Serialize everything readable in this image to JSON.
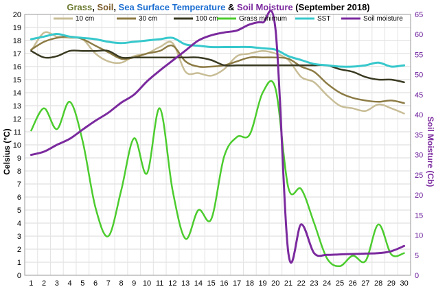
{
  "title": {
    "parts": [
      {
        "text": "Grass",
        "color": "#6b7a2f"
      },
      {
        "text": ", ",
        "color": "#000000"
      },
      {
        "text": "Soil",
        "color": "#7a5c2a"
      },
      {
        "text": ", ",
        "color": "#000000"
      },
      {
        "text": "Sea Surface Temperature",
        "color": "#1c6fd1"
      },
      {
        "text": " & ",
        "color": "#000000"
      },
      {
        "text": "Soil Moisture",
        "color": "#7b2a9e"
      },
      {
        "text": " (September 2018)",
        "color": "#000000"
      }
    ]
  },
  "chart_data": {
    "type": "line",
    "x": [
      1,
      2,
      3,
      4,
      5,
      6,
      7,
      8,
      9,
      10,
      11,
      12,
      13,
      14,
      15,
      16,
      17,
      18,
      19,
      20,
      21,
      22,
      23,
      24,
      25,
      26,
      27,
      28,
      29,
      30
    ],
    "xlabel": "",
    "ylabel": "Celsius (°C)",
    "ylabel_right": "Soil Moisture (Cb)",
    "ylim": [
      0,
      20
    ],
    "ylim_right": [
      0,
      65
    ],
    "grid": true,
    "legend_position": "top",
    "series": [
      {
        "name": "10 cm",
        "axis": "left",
        "color": "#c8bd96",
        "width": 2.5,
        "values": [
          17.2,
          18.6,
          18.3,
          18.2,
          18.1,
          17.0,
          16.4,
          16.3,
          16.8,
          17.0,
          17.5,
          17.8,
          15.6,
          15.5,
          15.3,
          15.8,
          16.8,
          17.0,
          17.2,
          17.0,
          16.5,
          15.2,
          14.8,
          13.8,
          13.0,
          12.8,
          12.6,
          13.1,
          12.8,
          12.4
        ]
      },
      {
        "name": "30 cm",
        "axis": "left",
        "color": "#8c7b45",
        "width": 2.5,
        "values": [
          17.3,
          17.9,
          18.2,
          18.3,
          18.1,
          17.6,
          17.1,
          16.6,
          16.7,
          17.0,
          17.2,
          17.6,
          16.4,
          16.0,
          16.0,
          16.1,
          16.4,
          16.7,
          16.7,
          16.7,
          16.6,
          16.0,
          15.6,
          14.7,
          14.0,
          13.6,
          13.4,
          13.3,
          13.4,
          13.2
        ]
      },
      {
        "name": "100 cm",
        "axis": "left",
        "color": "#3a3a22",
        "width": 2.5,
        "values": [
          17.2,
          16.7,
          16.8,
          17.2,
          17.2,
          17.2,
          17.2,
          16.7,
          16.7,
          16.7,
          16.7,
          16.7,
          16.7,
          16.7,
          16.5,
          16.1,
          16.1,
          16.1,
          16.1,
          16.1,
          16.1,
          16.1,
          16.1,
          16.1,
          15.8,
          15.6,
          15.2,
          15.0,
          15.0,
          14.8
        ]
      },
      {
        "name": "Grass minimum",
        "axis": "left",
        "color": "#4ccc2e",
        "width": 2.5,
        "values": [
          11.1,
          12.8,
          11.2,
          13.3,
          10.3,
          5.2,
          3.0,
          6.5,
          10.5,
          7.8,
          12.8,
          6.5,
          2.8,
          5.0,
          4.3,
          9.1,
          10.6,
          10.8,
          14.0,
          14.3,
          6.7,
          6.6,
          4.0,
          1.3,
          0.7,
          1.5,
          1.1,
          3.9,
          1.6,
          1.7
        ]
      },
      {
        "name": "SST",
        "axis": "left",
        "color": "#37c8cc",
        "width": 3,
        "values": [
          18.1,
          18.3,
          18.5,
          18.3,
          18.2,
          18.1,
          17.9,
          17.8,
          17.9,
          18.0,
          18.1,
          18.2,
          17.7,
          17.6,
          17.5,
          17.5,
          17.5,
          17.5,
          17.4,
          17.3,
          16.8,
          16.5,
          16.2,
          16.1,
          16.0,
          16.0,
          16.1,
          16.3,
          16.0,
          16.1
        ]
      },
      {
        "name": "Soil moisture",
        "axis": "right",
        "color": "#7b2a9e",
        "width": 3,
        "values": [
          30.0,
          30.8,
          32.5,
          34.0,
          36.3,
          38.5,
          40.5,
          43.0,
          45.0,
          48.3,
          51.0,
          53.5,
          56.0,
          58.5,
          59.8,
          60.5,
          61.0,
          62.5,
          63.0,
          61.2,
          5.5,
          12.7,
          5.5,
          5.1,
          5.2,
          5.3,
          5.4,
          5.5,
          6.0,
          7.3
        ]
      }
    ]
  }
}
